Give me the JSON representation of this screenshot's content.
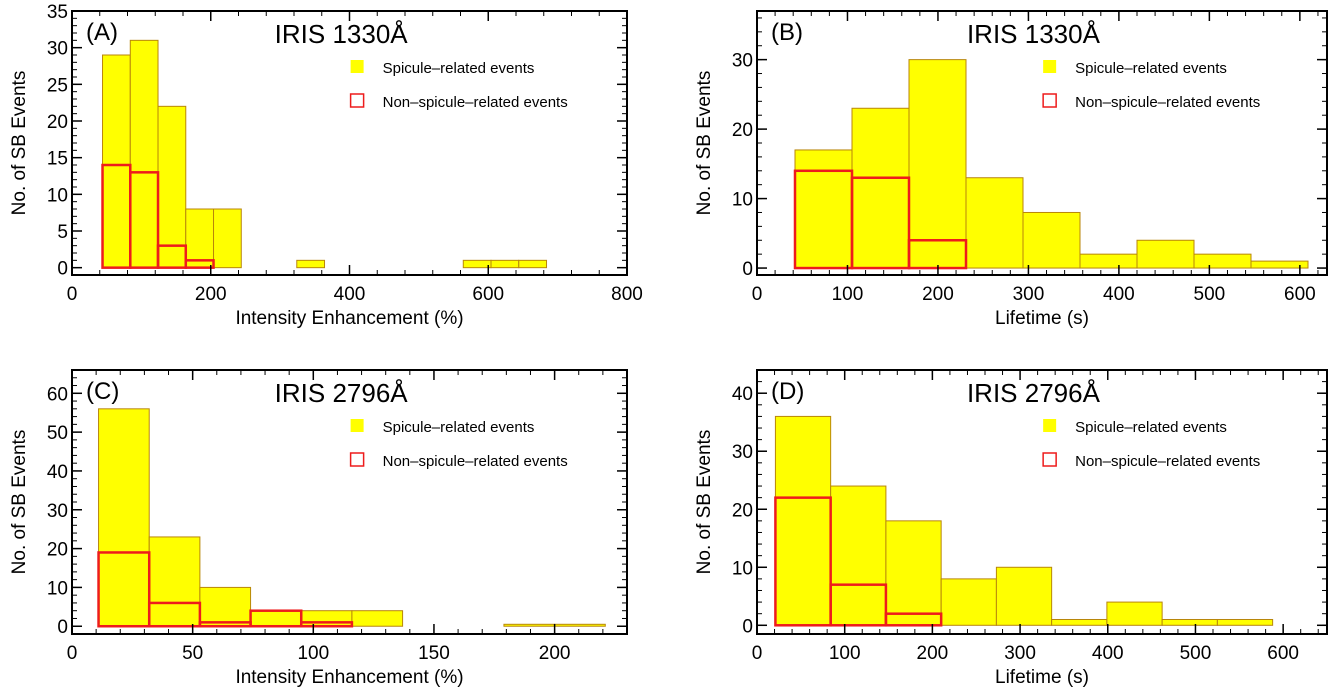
{
  "chart_data": [
    {
      "type": "bar",
      "panel_label": "(A)",
      "title": "IRIS 1330Å",
      "xlabel": "Intensity Enhancement (%)",
      "ylabel": "No. of SB Events",
      "xlim": [
        0,
        800
      ],
      "ylim": [
        -1,
        35
      ],
      "xticks": [
        0,
        200,
        400,
        600,
        800
      ],
      "yticks": [
        0,
        5,
        10,
        15,
        20,
        25,
        30,
        35
      ],
      "bin_width": 40,
      "legend": [
        "Spicule–related events",
        "Non–spicule–related events"
      ],
      "legend_position": "top-right",
      "series": [
        {
          "name": "Spicule–related events",
          "style": "filled",
          "bins": [
            [
              44,
              29
            ],
            [
              84,
              31
            ],
            [
              124,
              22
            ],
            [
              164,
              8
            ],
            [
              204,
              8
            ],
            [
              324,
              1
            ],
            [
              564,
              1
            ],
            [
              604,
              1
            ],
            [
              644,
              1
            ]
          ]
        },
        {
          "name": "Non–spicule–related events",
          "style": "outline",
          "bins": [
            [
              44,
              14
            ],
            [
              84,
              13
            ],
            [
              124,
              3
            ],
            [
              164,
              1
            ]
          ]
        }
      ]
    },
    {
      "type": "bar",
      "panel_label": "(B)",
      "title": "IRIS 1330Å",
      "xlabel": "Lifetime (s)",
      "ylabel": "No. of SB Events",
      "xlim": [
        0,
        630
      ],
      "ylim": [
        -1,
        37
      ],
      "xticks": [
        0,
        100,
        200,
        300,
        400,
        500,
        600
      ],
      "yticks": [
        0,
        10,
        20,
        30
      ],
      "bin_width": 63,
      "legend": [
        "Spicule–related events",
        "Non–spicule–related events"
      ],
      "legend_position": "top-right",
      "series": [
        {
          "name": "Spicule–related events",
          "style": "filled",
          "bins": [
            [
              42,
              17
            ],
            [
              105,
              23
            ],
            [
              168,
              30
            ],
            [
              231,
              13
            ],
            [
              294,
              8
            ],
            [
              357,
              2
            ],
            [
              420,
              4
            ],
            [
              483,
              2
            ],
            [
              546,
              1
            ]
          ]
        },
        {
          "name": "Non–spicule–related events",
          "style": "outline",
          "bins": [
            [
              42,
              14
            ],
            [
              105,
              13
            ],
            [
              168,
              4
            ]
          ]
        }
      ]
    },
    {
      "type": "bar",
      "panel_label": "(C)",
      "title": "IRIS 2796Å",
      "xlabel": "Intensity Enhancement (%)",
      "ylabel": "No. of SB Events",
      "xlim": [
        0,
        230
      ],
      "ylim": [
        -2,
        66
      ],
      "xticks": [
        0,
        50,
        100,
        150,
        200
      ],
      "yticks": [
        0,
        10,
        20,
        30,
        40,
        50,
        60
      ],
      "bin_width": 21,
      "legend": [
        "Spicule–related events",
        "Non–spicule–related events"
      ],
      "legend_position": "top-right",
      "series": [
        {
          "name": "Spicule–related events",
          "style": "filled",
          "bins": [
            [
              11,
              56
            ],
            [
              32,
              23
            ],
            [
              53,
              10
            ],
            [
              74,
              4
            ],
            [
              95,
              4
            ],
            [
              116,
              4
            ],
            [
              179,
              0.5
            ],
            [
              200,
              0.5
            ]
          ]
        },
        {
          "name": "Non–spicule–related events",
          "style": "outline",
          "bins": [
            [
              11,
              19
            ],
            [
              32,
              6
            ],
            [
              53,
              1
            ],
            [
              74,
              4
            ],
            [
              95,
              1
            ]
          ]
        }
      ]
    },
    {
      "type": "bar",
      "panel_label": "(D)",
      "title": "IRIS 2796Å",
      "xlabel": "Lifetime (s)",
      "ylabel": "No. of SB Events",
      "xlim": [
        0,
        650
      ],
      "ylim": [
        -1.5,
        44
      ],
      "xticks": [
        0,
        100,
        200,
        300,
        400,
        500,
        600
      ],
      "yticks": [
        0,
        10,
        20,
        30,
        40
      ],
      "bin_width": 63,
      "legend": [
        "Spicule–related events",
        "Non–spicule–related events"
      ],
      "legend_position": "top-right",
      "series": [
        {
          "name": "Spicule–related events",
          "style": "filled",
          "bins": [
            [
              21,
              36
            ],
            [
              84,
              24
            ],
            [
              147,
              18
            ],
            [
              210,
              8
            ],
            [
              273,
              10
            ],
            [
              336,
              1
            ],
            [
              399,
              4
            ],
            [
              462,
              1
            ],
            [
              525,
              1
            ]
          ]
        },
        {
          "name": "Non–spicule–related events",
          "style": "outline",
          "bins": [
            [
              21,
              22
            ],
            [
              84,
              7
            ],
            [
              147,
              2
            ]
          ]
        }
      ]
    }
  ],
  "colors": {
    "spicule_fill": "#ffff00",
    "spicule_edge": "#b8860b",
    "non_spicule_edge": "#ee1c1c",
    "axis": "#000000"
  }
}
